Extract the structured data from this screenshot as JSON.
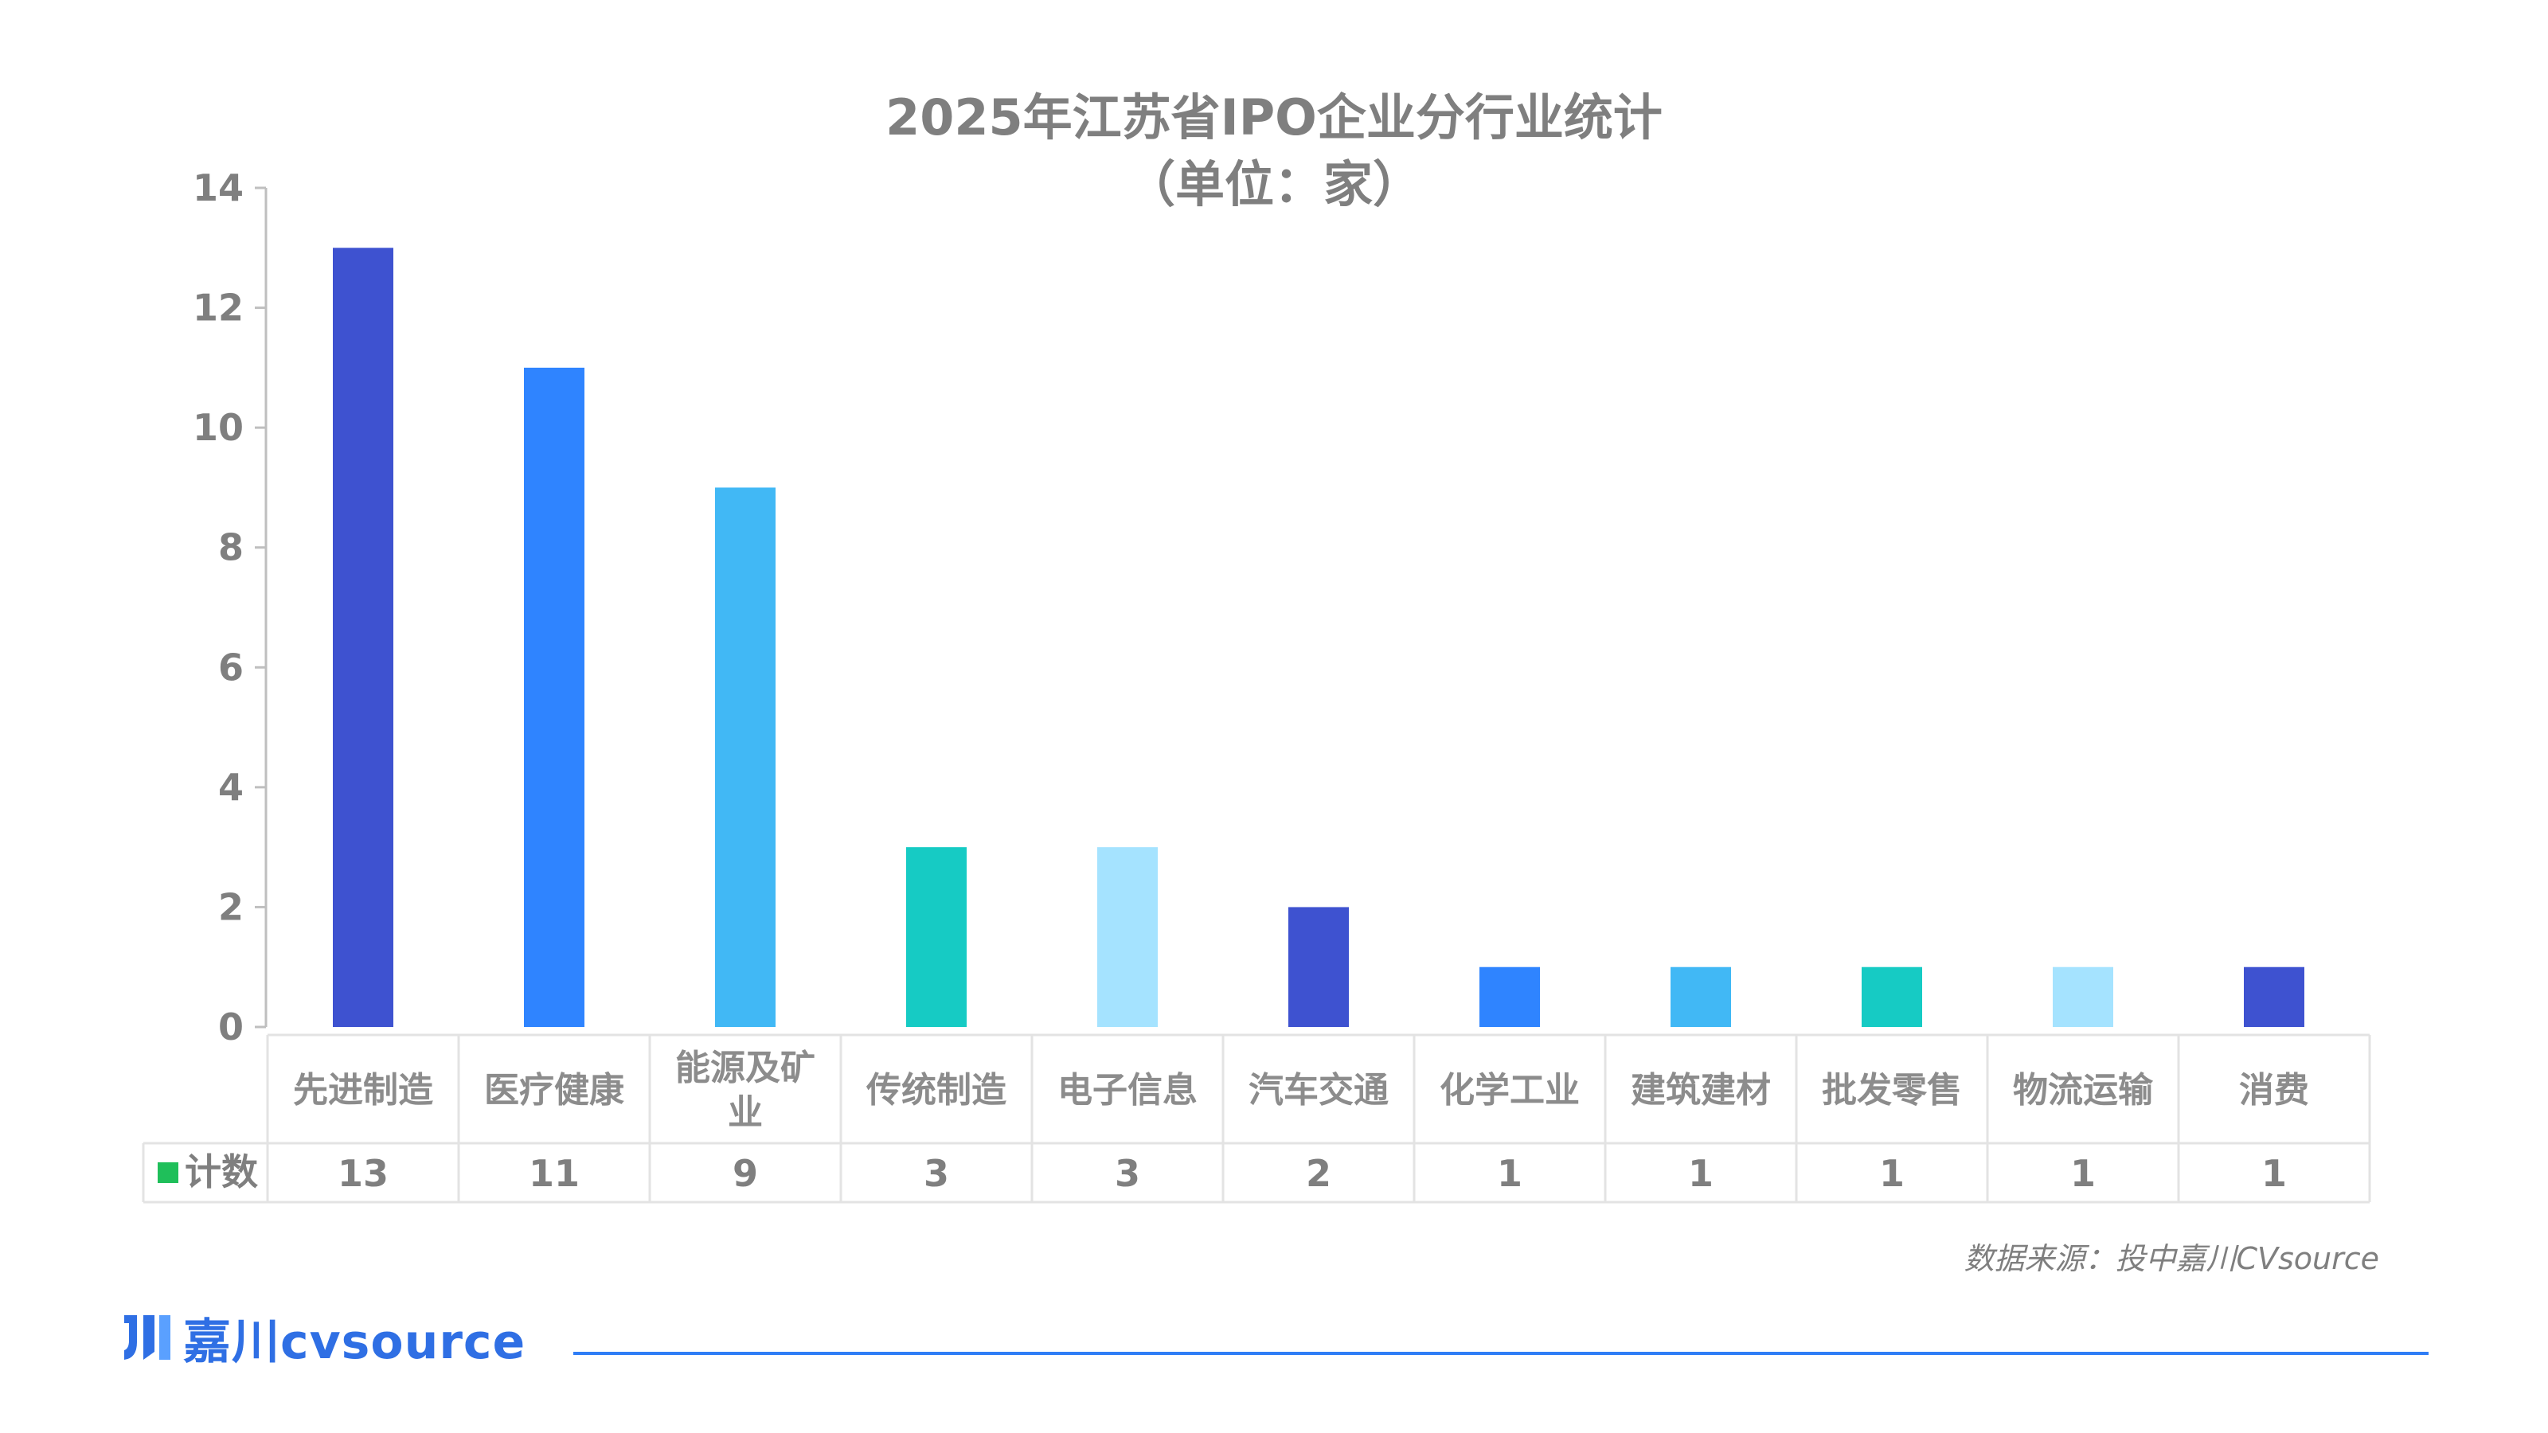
{
  "chart_data": {
    "type": "bar",
    "title": "2025年江苏省IPO企业分行业统计",
    "subtitle": "（单位：家）",
    "categories": [
      "先进制造",
      "医疗健康",
      "能源及矿业",
      "传统制造",
      "电子信息",
      "汽车交通",
      "化学工业",
      "建筑建材",
      "批发零售",
      "物流运输",
      "消费"
    ],
    "series": [
      {
        "name": "计数",
        "values": [
          13,
          11,
          9,
          3,
          3,
          2,
          1,
          1,
          1,
          1,
          1
        ]
      }
    ],
    "bar_colors": [
      "#3e52d0",
      "#2f84ff",
      "#41b8f5",
      "#16cbc4",
      "#a5e3ff",
      "#3e52d0",
      "#2f84ff",
      "#41b8f5",
      "#16cbc4",
      "#a5e3ff",
      "#3e52d0"
    ],
    "legend_swatch_color": "#1fbf5a",
    "ylim": [
      0,
      14
    ],
    "yticks": [
      0,
      2,
      4,
      6,
      8,
      10,
      12,
      14
    ],
    "grid": false,
    "data_table": true
  },
  "footer": {
    "source": "数据来源：投中嘉川CVsource",
    "brand": "嘉川cvsource"
  },
  "icons": {
    "brand_logo": "cvsource-logo-icon"
  },
  "colors": {
    "brand": "#2f6fe4",
    "rule": "#2f7df6"
  }
}
